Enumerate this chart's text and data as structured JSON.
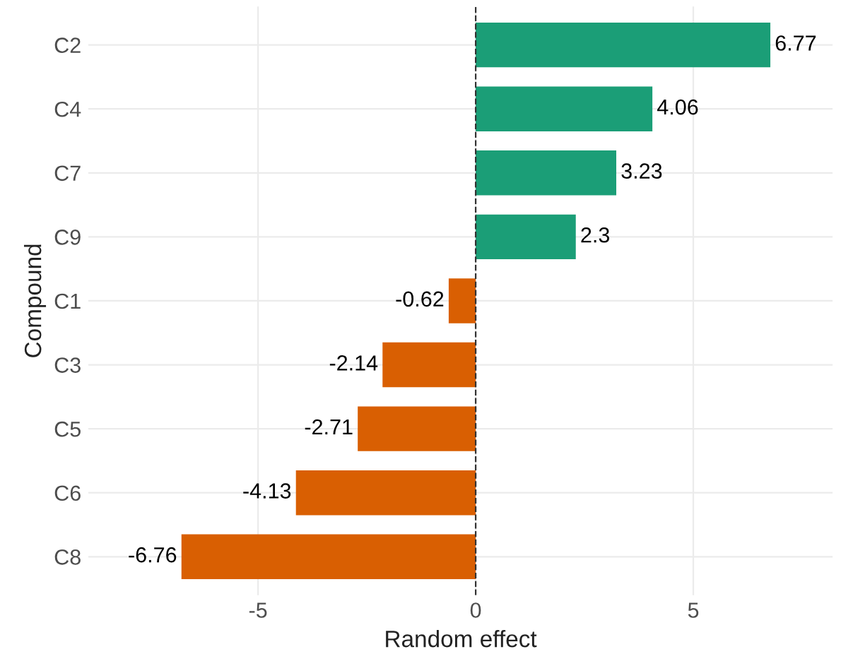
{
  "chart_data": {
    "type": "bar",
    "orientation": "horizontal",
    "xlabel": "Random effect",
    "ylabel": "Compound",
    "categories": [
      "C2",
      "C4",
      "C7",
      "C9",
      "C1",
      "C3",
      "C5",
      "C6",
      "C8"
    ],
    "values": [
      6.77,
      4.06,
      3.23,
      2.3,
      -0.62,
      -2.14,
      -2.71,
      -4.13,
      -6.76
    ],
    "colors": [
      "#1b9e77",
      "#1b9e77",
      "#1b9e77",
      "#1b9e77",
      "#d95f02",
      "#d95f02",
      "#d95f02",
      "#d95f02",
      "#d95f02"
    ],
    "xlim": [
      -8.9,
      8.2
    ],
    "xticks": [
      -5,
      0,
      5
    ],
    "grid": true,
    "data_labels": true,
    "ref_lines": [
      {
        "axis": "x",
        "value": 0,
        "line_style": "dashed",
        "color": "#333333"
      }
    ]
  }
}
